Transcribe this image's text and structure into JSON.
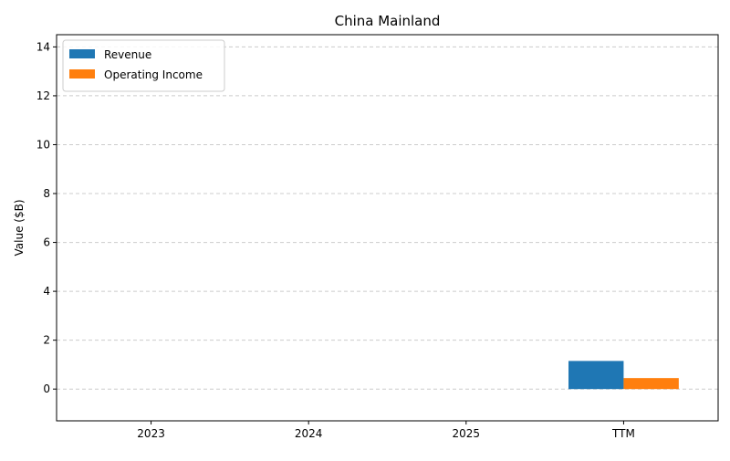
{
  "chart_data": {
    "type": "bar",
    "title": "China Mainland",
    "xlabel": "",
    "ylabel": "Value ($B)",
    "categories": [
      "2023",
      "2024",
      "2025",
      "TTM"
    ],
    "series": [
      {
        "name": "Revenue",
        "values": [
          0,
          0,
          0,
          1.15
        ],
        "color": "#1f77b4"
      },
      {
        "name": "Operating Income",
        "values": [
          0,
          0,
          0,
          0.45
        ],
        "color": "#ff7f0e"
      }
    ],
    "ylim": [
      -1.3,
      14.5
    ],
    "yticks": [
      0,
      2,
      4,
      6,
      8,
      10,
      12,
      14
    ],
    "ytick_labels": [
      "0",
      "2",
      "4",
      "6",
      "8",
      "10",
      "12",
      "14"
    ],
    "grid": true,
    "grid_axis": "y",
    "legend_position": "top-left"
  }
}
